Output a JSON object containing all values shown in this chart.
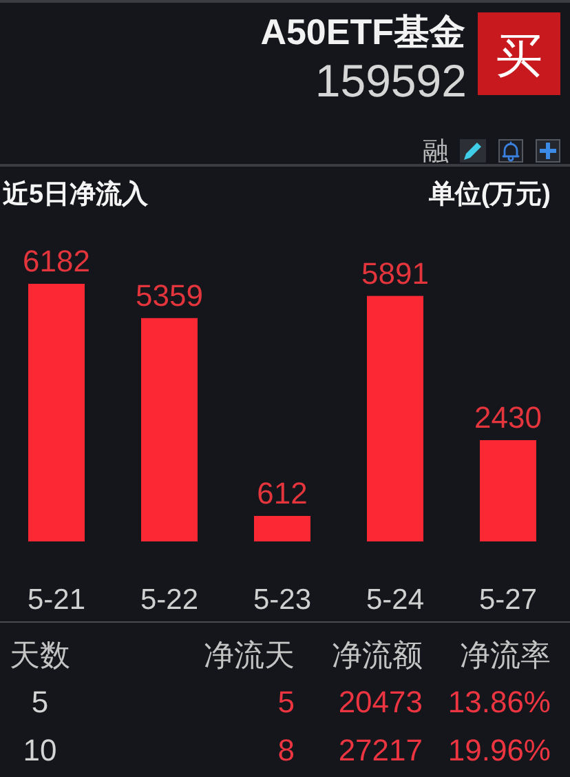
{
  "chart_data": [
    {
      "type": "other",
      "title": "A50ETF基金",
      "subtitle": "159592",
      "annotations": [
        "买",
        "融"
      ]
    },
    {
      "type": "bar",
      "title": "近5日净流入",
      "ylabel": "单位(万元)",
      "categories": [
        "5-21",
        "5-22",
        "5-23",
        "5-24",
        "5-27"
      ],
      "values": [
        6182,
        5359,
        612,
        5891,
        2430
      ],
      "color": "#fc2834",
      "data_labels": true
    },
    {
      "type": "other",
      "annotations": [
        "天数",
        "净流天",
        "净流额",
        "净流率",
        "5",
        "5",
        "20473",
        "13.86%",
        "10",
        "8",
        "27217",
        "19.96%"
      ]
    }
  ]
}
